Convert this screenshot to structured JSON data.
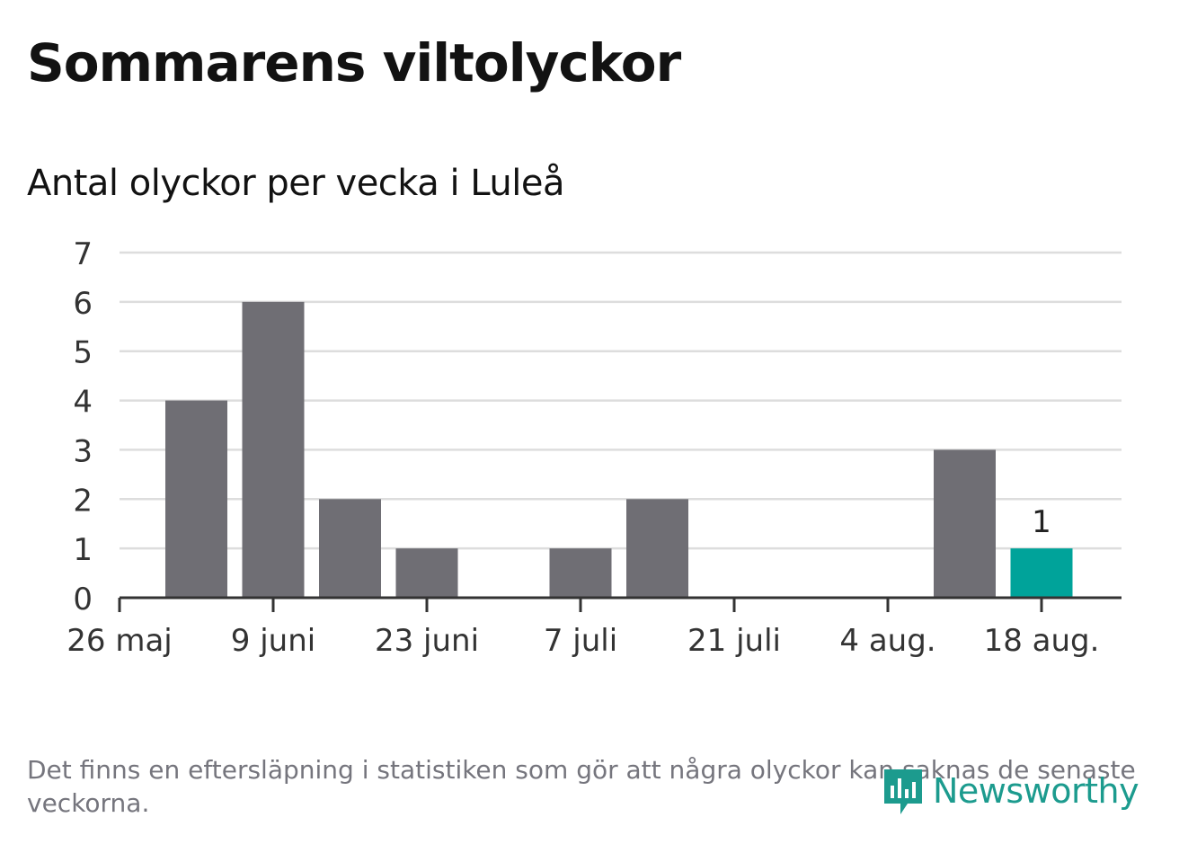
{
  "header": {
    "title": "Sommarens viltolyckor",
    "subtitle": "Antal olyckor per vecka i Luleå"
  },
  "footer": {
    "note": "Det finns en eftersläpning i statistiken som gör att några olyckor kan saknas de senaste veckorna.",
    "brand": "Newsworthy",
    "brand_icon": "newsworthy-logo-icon"
  },
  "colors": {
    "bar": "#6f6e74",
    "highlight": "#00a39a",
    "grid": "#dddddd",
    "axis": "#333333",
    "text": "#333333"
  },
  "chart_data": {
    "type": "bar",
    "title": "Antal olyckor per vecka i Luleå",
    "xlabel": "",
    "ylabel": "",
    "ylim": [
      0,
      7
    ],
    "yticks": [
      "0",
      "1",
      "2",
      "3",
      "4",
      "5",
      "6",
      "7"
    ],
    "xticks": [
      "26 maj",
      "9 juni",
      "23 juni",
      "7 juli",
      "21 juli",
      "4 aug.",
      "18 aug."
    ],
    "values": [
      4,
      6,
      2,
      1,
      0,
      1,
      2,
      0,
      0,
      0,
      3,
      1
    ],
    "highlight_index": 11,
    "data_labels": [
      {
        "index": 11,
        "text": "1"
      }
    ],
    "grid": true,
    "legend": "none"
  }
}
